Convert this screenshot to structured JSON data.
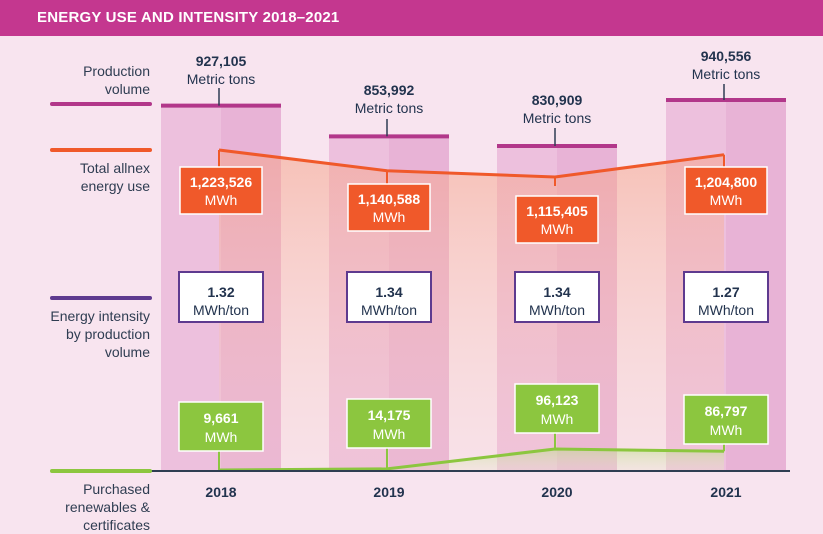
{
  "header": {
    "title": "ENERGY USE AND INTENSITY 2018–2021"
  },
  "left_labels": {
    "production": [
      "Production",
      "volume"
    ],
    "energy_use": [
      "Total allnex",
      "energy use"
    ],
    "intensity": [
      "Energy intensity",
      "by production",
      "volume"
    ],
    "renewables": [
      "Purchased",
      "renewables &",
      "certificates"
    ]
  },
  "colors": {
    "header": "#c4378f",
    "background": "#f8e4ef",
    "bar": "#edc0dd",
    "production_line": "#b2378a",
    "energy_use": "#f0592a",
    "intensity_border": "#5e3a8f",
    "renewables": "#8cc63f",
    "axis": "#2f3d52"
  },
  "chart_data": {
    "type": "bar",
    "title": "ENERGY USE AND INTENSITY 2018–2021",
    "categories": [
      "2018",
      "2019",
      "2020",
      "2021"
    ],
    "series": [
      {
        "name": "Production volume",
        "unit": "Metric tons",
        "values": [
          927105,
          853992,
          830909,
          940556
        ],
        "labels": [
          "927,105",
          "853,992",
          "830,909",
          "940,556"
        ]
      },
      {
        "name": "Total allnex energy use",
        "unit": "MWh",
        "values": [
          1223526,
          1140588,
          1115405,
          1204800
        ],
        "labels": [
          "1,223,526",
          "1,140,588",
          "1,115,405",
          "1,204,800"
        ]
      },
      {
        "name": "Energy intensity by production volume",
        "unit": "MWh/ton",
        "values": [
          1.32,
          1.34,
          1.34,
          1.27
        ],
        "labels": [
          "1.32",
          "1.34",
          "1.34",
          "1.27"
        ]
      },
      {
        "name": "Purchased renewables & certificates",
        "unit": "MWh",
        "values": [
          9661,
          14175,
          96123,
          86797
        ],
        "labels": [
          "9,661",
          "14,175",
          "96,123",
          "86,797"
        ]
      }
    ]
  }
}
